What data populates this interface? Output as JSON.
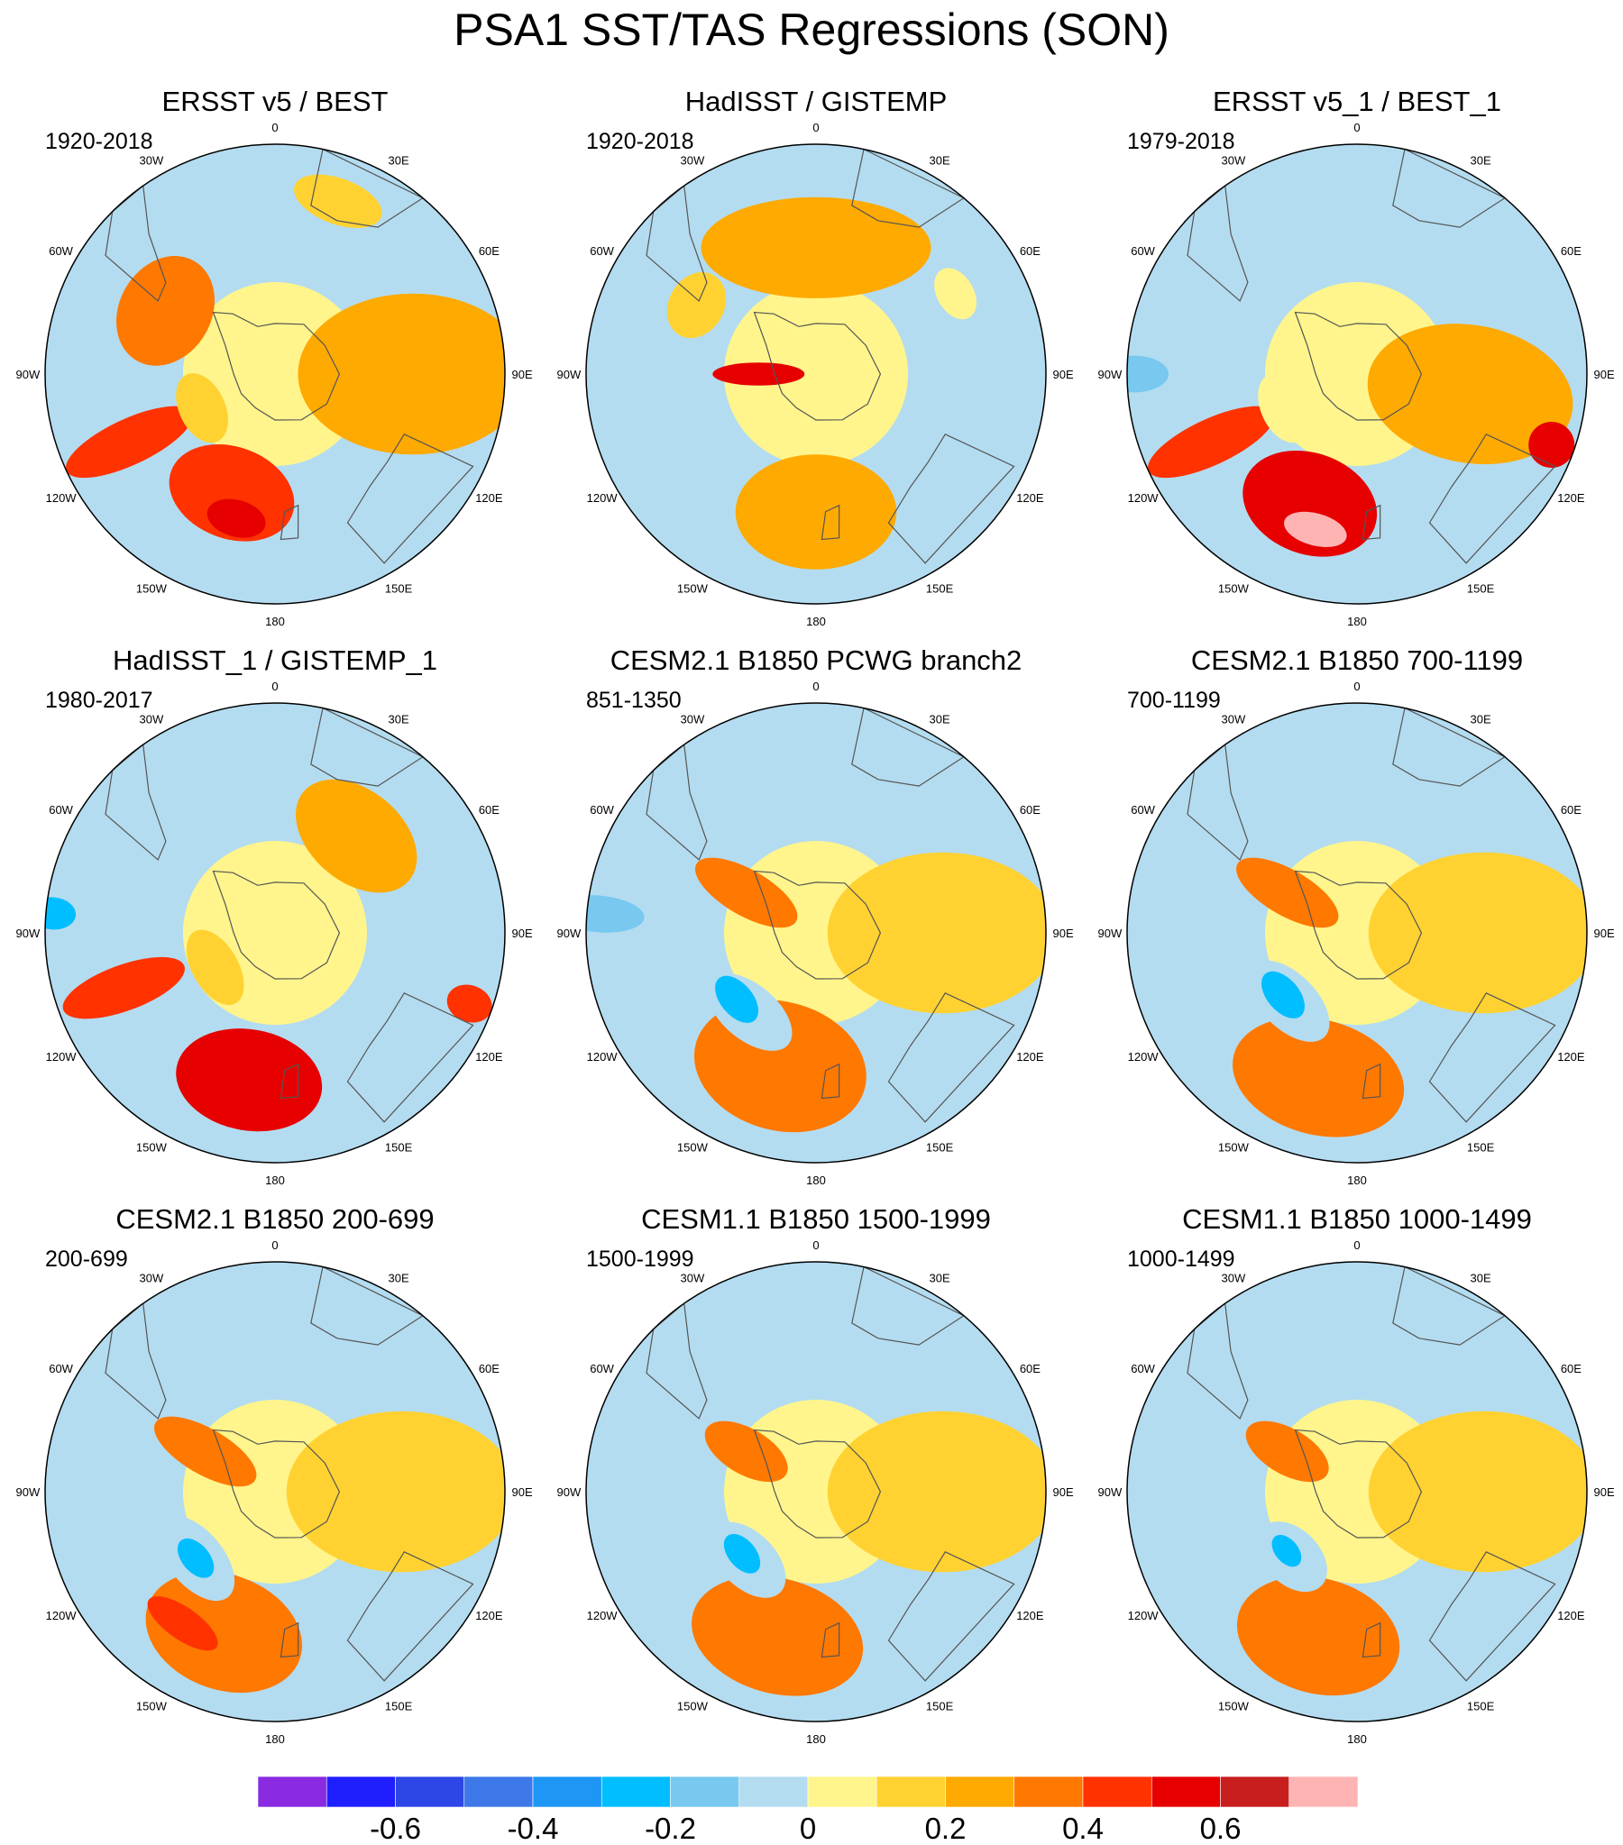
{
  "title": "PSA1 SST/TAS Regressions (SON)",
  "lon_labels": [
    "0",
    "30E",
    "60E",
    "90E",
    "120E",
    "150E",
    "180",
    "150W",
    "120W",
    "90W",
    "60W",
    "30W"
  ],
  "panels": [
    {
      "title": "ERSST v5 / BEST",
      "period": "1920-2018",
      "blobs": [
        {
          "lon": 200,
          "r": 0.55,
          "rx": 0.28,
          "ry": 0.2,
          "level": 12
        },
        {
          "lon": 195,
          "r": 0.65,
          "rx": 0.13,
          "ry": 0.08,
          "level": 13
        },
        {
          "lon": 245,
          "r": 0.7,
          "rx": 0.1,
          "ry": 0.3,
          "level": 12
        },
        {
          "lon": 245,
          "r": 0.35,
          "rx": 0.16,
          "ry": 0.1,
          "level": 9
        },
        {
          "lon": 300,
          "r": 0.55,
          "rx": 0.25,
          "ry": 0.2,
          "level": 11
        },
        {
          "lon": 90,
          "r": 0.6,
          "rx": 0.35,
          "ry": 0.5,
          "level": 10
        },
        {
          "lon": 20,
          "r": 0.8,
          "rx": 0.2,
          "ry": 0.1,
          "level": 9
        }
      ]
    },
    {
      "title": "HadISST / GISTEMP",
      "period": "1920-2018",
      "blobs": [
        {
          "lon": 0,
          "r": 0.55,
          "rx": 0.5,
          "ry": 0.22,
          "level": 10
        },
        {
          "lon": 270,
          "r": 0.25,
          "rx": 0.05,
          "ry": 0.2,
          "level": 13
        },
        {
          "lon": 180,
          "r": 0.6,
          "rx": 0.35,
          "ry": 0.25,
          "level": 10
        },
        {
          "lon": 60,
          "r": 0.7,
          "rx": 0.12,
          "ry": 0.08,
          "level": 8
        },
        {
          "lon": 300,
          "r": 0.6,
          "rx": 0.15,
          "ry": 0.12,
          "level": 9
        }
      ]
    },
    {
      "title": "ERSST v5_1 / BEST_1",
      "period": "1979-2018",
      "blobs": [
        {
          "lon": 200,
          "r": 0.6,
          "rx": 0.3,
          "ry": 0.22,
          "level": 13
        },
        {
          "lon": 195,
          "r": 0.7,
          "rx": 0.14,
          "ry": 0.07,
          "level": 15
        },
        {
          "lon": 245,
          "r": 0.7,
          "rx": 0.1,
          "ry": 0.3,
          "level": 12
        },
        {
          "lon": 245,
          "r": 0.35,
          "rx": 0.16,
          "ry": 0.1,
          "level": 8
        },
        {
          "lon": 270,
          "r": 0.97,
          "rx": 0.08,
          "ry": 0.15,
          "level": 6
        },
        {
          "lon": 100,
          "r": 0.5,
          "rx": 0.3,
          "ry": 0.45,
          "level": 10
        },
        {
          "lon": 110,
          "r": 0.9,
          "rx": 0.1,
          "ry": 0.1,
          "level": 13
        }
      ]
    },
    {
      "title": "HadISST_1 / GISTEMP_1",
      "period": "1980-2017",
      "blobs": [
        {
          "lon": 190,
          "r": 0.65,
          "rx": 0.32,
          "ry": 0.22,
          "level": 13
        },
        {
          "lon": 250,
          "r": 0.7,
          "rx": 0.1,
          "ry": 0.28,
          "level": 12
        },
        {
          "lon": 240,
          "r": 0.3,
          "rx": 0.18,
          "ry": 0.1,
          "level": 9
        },
        {
          "lon": 275,
          "r": 0.97,
          "rx": 0.07,
          "ry": 0.1,
          "level": 5
        },
        {
          "lon": 40,
          "r": 0.55,
          "rx": 0.3,
          "ry": 0.2,
          "level": 10
        },
        {
          "lon": 110,
          "r": 0.9,
          "rx": 0.08,
          "ry": 0.1,
          "level": 12
        }
      ]
    },
    {
      "title": "CESM2.1 B1850 PCWG branch2",
      "period": "851-1350",
      "blobs": [
        {
          "lon": 195,
          "r": 0.6,
          "rx": 0.38,
          "ry": 0.28,
          "level": 11
        },
        {
          "lon": 220,
          "r": 0.45,
          "rx": 0.22,
          "ry": 0.12,
          "level": 7
        },
        {
          "lon": 230,
          "r": 0.45,
          "rx": 0.12,
          "ry": 0.07,
          "level": 5
        },
        {
          "lon": 300,
          "r": 0.35,
          "rx": 0.1,
          "ry": 0.25,
          "level": 11
        },
        {
          "lon": 275,
          "r": 0.95,
          "rx": 0.08,
          "ry": 0.2,
          "level": 6
        },
        {
          "lon": 90,
          "r": 0.55,
          "rx": 0.35,
          "ry": 0.5,
          "level": 9
        }
      ]
    },
    {
      "title": "CESM2.1 B1850 700-1199",
      "period": "700-1199",
      "blobs": [
        {
          "lon": 195,
          "r": 0.65,
          "rx": 0.38,
          "ry": 0.25,
          "level": 11
        },
        {
          "lon": 225,
          "r": 0.42,
          "rx": 0.22,
          "ry": 0.12,
          "level": 7
        },
        {
          "lon": 230,
          "r": 0.42,
          "rx": 0.12,
          "ry": 0.07,
          "level": 5
        },
        {
          "lon": 300,
          "r": 0.35,
          "rx": 0.1,
          "ry": 0.25,
          "level": 11
        },
        {
          "lon": 270,
          "r": 0.95,
          "rx": 0.08,
          "ry": 0.2,
          "level": 7
        },
        {
          "lon": 90,
          "r": 0.55,
          "rx": 0.35,
          "ry": 0.5,
          "level": 9
        }
      ]
    },
    {
      "title": "CESM2.1 B1850 200-699",
      "period": "200-699",
      "blobs": [
        {
          "lon": 200,
          "r": 0.65,
          "rx": 0.35,
          "ry": 0.25,
          "level": 11
        },
        {
          "lon": 215,
          "r": 0.7,
          "rx": 0.18,
          "ry": 0.07,
          "level": 12
        },
        {
          "lon": 230,
          "r": 0.45,
          "rx": 0.22,
          "ry": 0.12,
          "level": 7
        },
        {
          "lon": 230,
          "r": 0.45,
          "rx": 0.1,
          "ry": 0.06,
          "level": 5
        },
        {
          "lon": 300,
          "r": 0.35,
          "rx": 0.1,
          "ry": 0.25,
          "level": 11
        },
        {
          "lon": 90,
          "r": 0.55,
          "rx": 0.35,
          "ry": 0.5,
          "level": 9
        }
      ]
    },
    {
      "title": "CESM1.1 B1850 1500-1999",
      "period": "1500-1999",
      "blobs": [
        {
          "lon": 195,
          "r": 0.65,
          "rx": 0.38,
          "ry": 0.25,
          "level": 11
        },
        {
          "lon": 225,
          "r": 0.42,
          "rx": 0.2,
          "ry": 0.12,
          "level": 7
        },
        {
          "lon": 230,
          "r": 0.42,
          "rx": 0.1,
          "ry": 0.06,
          "level": 5
        },
        {
          "lon": 300,
          "r": 0.35,
          "rx": 0.1,
          "ry": 0.2,
          "level": 11
        },
        {
          "lon": 90,
          "r": 0.55,
          "rx": 0.35,
          "ry": 0.5,
          "level": 9
        }
      ]
    },
    {
      "title": "CESM1.1 B1850 1000-1499",
      "period": "1000-1499",
      "blobs": [
        {
          "lon": 195,
          "r": 0.65,
          "rx": 0.36,
          "ry": 0.25,
          "level": 11
        },
        {
          "lon": 225,
          "r": 0.4,
          "rx": 0.18,
          "ry": 0.12,
          "level": 7
        },
        {
          "lon": 230,
          "r": 0.4,
          "rx": 0.08,
          "ry": 0.05,
          "level": 5
        },
        {
          "lon": 300,
          "r": 0.35,
          "rx": 0.1,
          "ry": 0.2,
          "level": 11
        },
        {
          "lon": 90,
          "r": 0.55,
          "rx": 0.35,
          "ry": 0.5,
          "level": 9
        }
      ]
    }
  ],
  "colorbar": {
    "colors": [
      "#8a2be2",
      "#1e1eff",
      "#2d46e6",
      "#3c78e8",
      "#1e96f5",
      "#00beff",
      "#78c8f0",
      "#b4dcf0",
      "#fff58c",
      "#ffd232",
      "#ffaa00",
      "#ff7800",
      "#ff3200",
      "#e60000",
      "#c81e1e",
      "#ffb4b4"
    ],
    "labels": [
      "-0.6",
      "-0.4",
      "-0.2",
      "0",
      "0.2",
      "0.4",
      "0.6"
    ]
  }
}
